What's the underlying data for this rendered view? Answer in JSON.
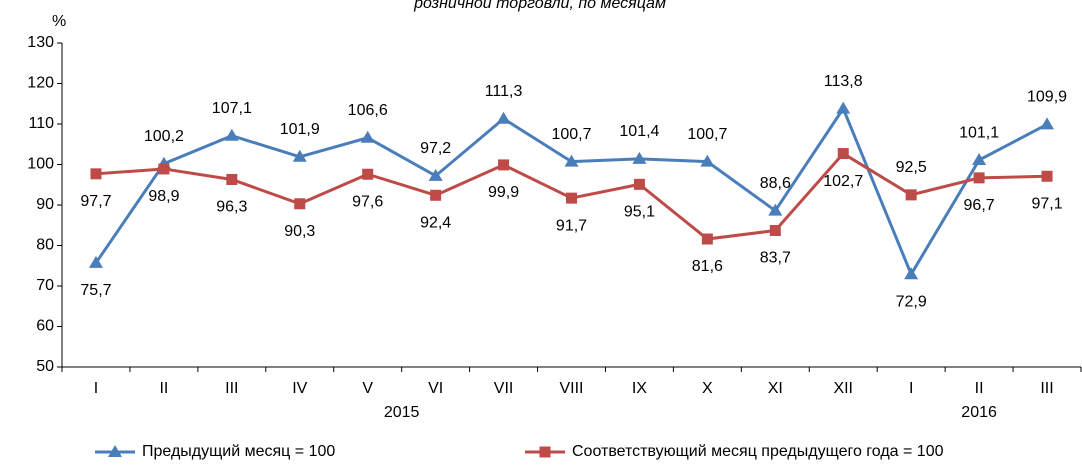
{
  "chart_data": {
    "type": "line",
    "title": "розничной торговли, по месяцам",
    "y_label": "%",
    "categories": [
      "I",
      "II",
      "III",
      "IV",
      "V",
      "VI",
      "VII",
      "VIII",
      "IX",
      "X",
      "XI",
      "XII",
      "I",
      "II",
      "III"
    ],
    "year_labels": [
      "2015",
      "2016"
    ],
    "ylim": [
      50,
      130
    ],
    "yticks": [
      50,
      60,
      70,
      80,
      90,
      100,
      110,
      120,
      130
    ],
    "series": [
      {
        "name": "Предыдущий месяц = 100",
        "color": "#4a7ebb",
        "marker": "triangle",
        "values": [
          75.7,
          100.2,
          107.1,
          101.9,
          106.6,
          97.2,
          111.3,
          100.7,
          101.4,
          100.7,
          88.6,
          113.8,
          72.9,
          101.1,
          109.9
        ],
        "value_labels": [
          "75,7",
          "100,2",
          "107,1",
          "101,9",
          "106,6",
          "97,2",
          "111,3",
          "100,7",
          "101,4",
          "100,7",
          "88,6",
          "113,8",
          "72,9",
          "101,1",
          "109,9"
        ]
      },
      {
        "name": "Соответствующий месяц предыдущего года = 100",
        "color": "#be4b48",
        "marker": "square",
        "values": [
          97.7,
          98.9,
          96.3,
          90.3,
          97.6,
          92.4,
          99.9,
          91.7,
          95.1,
          81.6,
          83.7,
          102.7,
          92.5,
          96.7,
          97.1
        ],
        "value_labels": [
          "97,7",
          "98,9",
          "96,3",
          "90,3",
          "97,6",
          "92,4",
          "99,9",
          "91,7",
          "95,1",
          "81,6",
          "83,7",
          "102,7",
          "92,5",
          "96,7",
          "97,1"
        ]
      }
    ]
  }
}
